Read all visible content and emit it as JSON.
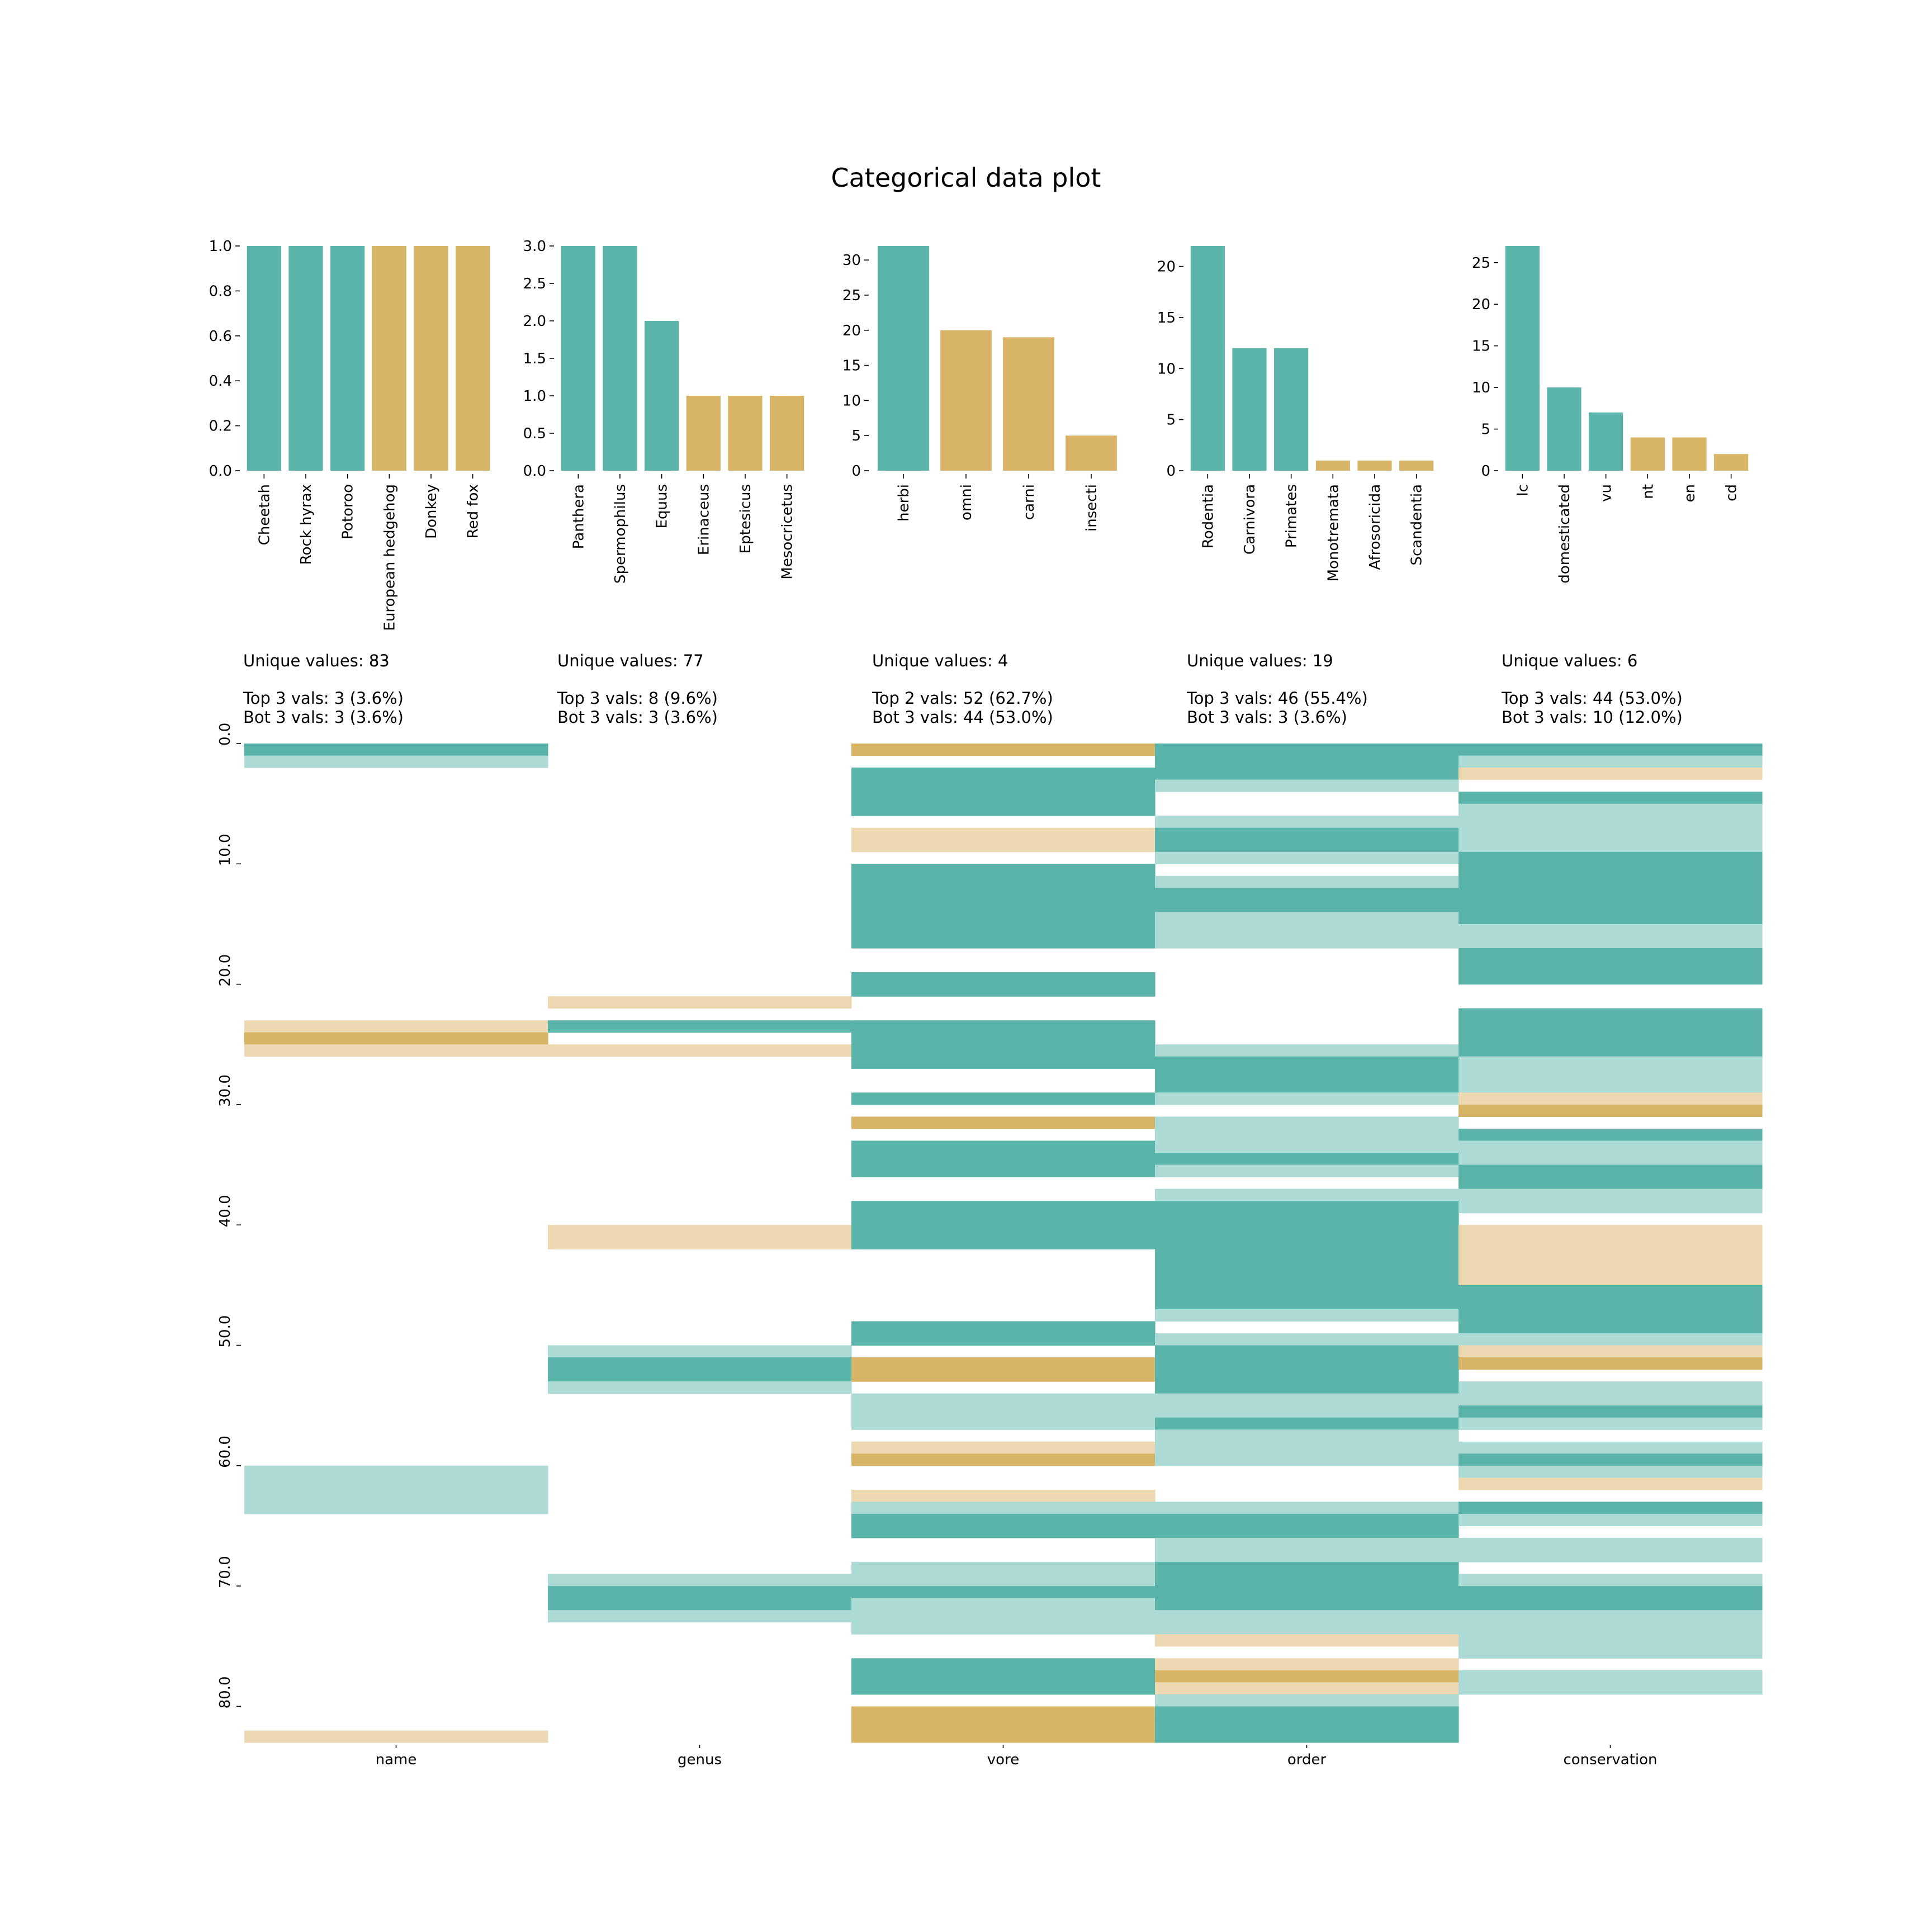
{
  "title": "Categorical data plot",
  "colors": {
    "top_strong": "#5bb4aa",
    "top_light": "#acdad5",
    "bot_strong": "#d7b466",
    "bot_light": "#ecd9b2"
  },
  "stat_lines": [
    {
      "unique": "Unique values: 83",
      "top": "Top 3 vals: 3 (3.6%)",
      "bot": "Bot 3 vals: 3 (3.6%)"
    },
    {
      "unique": "Unique values: 77",
      "top": "Top 3 vals: 8 (9.6%)",
      "bot": "Bot 3 vals: 3 (3.6%)"
    },
    {
      "unique": "Unique values: 4",
      "top": "Top 2 vals: 52 (62.7%)",
      "bot": "Bot 3 vals: 44 (53.0%)"
    },
    {
      "unique": "Unique values: 19",
      "top": "Top 3 vals: 46 (55.4%)",
      "bot": "Bot 3 vals: 3 (3.6%)"
    },
    {
      "unique": "Unique values: 6",
      "top": "Top 3 vals: 44 (53.0%)",
      "bot": "Bot 3 vals: 10 (12.0%)"
    }
  ],
  "chart_data": [
    {
      "type": "bar",
      "categories": [
        "Cheetah",
        "Rock hyrax",
        "Potoroo",
        "European hedgehog",
        "Donkey",
        "Red fox"
      ],
      "values": [
        1,
        1,
        1,
        1,
        1,
        1
      ],
      "group": [
        "top",
        "top",
        "top",
        "bot",
        "bot",
        "bot"
      ],
      "ylim": [
        0,
        1.0
      ],
      "yticks": [
        0.0,
        0.2,
        0.4,
        0.6,
        0.8,
        1.0
      ],
      "ytick_labels": [
        "0.0",
        "0.2",
        "0.4",
        "0.6",
        "0.8",
        "1.0"
      ]
    },
    {
      "type": "bar",
      "categories": [
        "Panthera",
        "Spermophilus",
        "Equus",
        "Erinaceus",
        "Eptesicus",
        "Mesocricetus"
      ],
      "values": [
        3,
        3,
        2,
        1,
        1,
        1
      ],
      "group": [
        "top",
        "top",
        "top",
        "bot",
        "bot",
        "bot"
      ],
      "ylim": [
        0,
        3.0
      ],
      "yticks": [
        0.0,
        0.5,
        1.0,
        1.5,
        2.0,
        2.5,
        3.0
      ],
      "ytick_labels": [
        "0.0",
        "0.5",
        "1.0",
        "1.5",
        "2.0",
        "2.5",
        "3.0"
      ]
    },
    {
      "type": "bar",
      "categories": [
        "herbi",
        "omni",
        "carni",
        "insecti"
      ],
      "values": [
        32,
        20,
        19,
        5
      ],
      "group": [
        "top",
        "bot",
        "bot",
        "bot"
      ],
      "ylim": [
        0,
        32
      ],
      "yticks": [
        0,
        5,
        10,
        15,
        20,
        25,
        30
      ],
      "ytick_labels": [
        "0",
        "5",
        "10",
        "15",
        "20",
        "25",
        "30"
      ]
    },
    {
      "type": "bar",
      "categories": [
        "Rodentia",
        "Carnivora",
        "Primates",
        "Monotremata",
        "Afrosoricida",
        "Scandentia"
      ],
      "values": [
        22,
        12,
        12,
        1,
        1,
        1
      ],
      "group": [
        "top",
        "top",
        "top",
        "bot",
        "bot",
        "bot"
      ],
      "ylim": [
        0,
        22
      ],
      "yticks": [
        0,
        5,
        10,
        15,
        20
      ],
      "ytick_labels": [
        "0",
        "5",
        "10",
        "15",
        "20"
      ]
    },
    {
      "type": "bar",
      "categories": [
        "lc",
        "domesticated",
        "vu",
        "nt",
        "en",
        "cd"
      ],
      "values": [
        27,
        10,
        7,
        4,
        4,
        2
      ],
      "group": [
        "top",
        "top",
        "top",
        "bot",
        "bot",
        "bot"
      ],
      "ylim": [
        0,
        27
      ],
      "yticks": [
        0,
        5,
        10,
        15,
        20,
        25
      ],
      "ytick_labels": [
        "0",
        "5",
        "10",
        "15",
        "20",
        "25"
      ]
    },
    {
      "type": "heatmap",
      "columns": [
        "name",
        "genus",
        "vore",
        "order",
        "conservation"
      ],
      "rows": 83,
      "ylim": [
        0,
        83
      ],
      "yticks": [
        0,
        10,
        20,
        30,
        40,
        50,
        60,
        70,
        80
      ],
      "ytick_labels": [
        "0.0",
        "10.0",
        "20.0",
        "30.0",
        "40.0",
        "50.0",
        "60.0",
        "70.0",
        "80.0"
      ],
      "legend": {
        "0": "not in top or bottom",
        "1": "top (light)",
        "2": "top (strong)",
        "-1": "bottom (light)",
        "-2": "bottom (strong)"
      },
      "cells": [
        "20000000000000000000000000000000000000000000000000000000000000000000000000000000000",
        "10000000000000000000000000000000000000000000000000000000000000000000000000000000000",
        "00000000000000000000000000000000000000000000000000000000000000000000000000000000000",
        "00000000000000000000000000000000000000000000000000000000000000000000000000000000000",
        "00000000000000000000000000000000000000000000000000000000000000000000000000000000000",
        "00000000000000000000000000000000000000000000000000000000000000000000000000000000000",
        "00000000000000000000000000000000000000000000000000000000000000000000000000000000000",
        "00000000000000000000000000000000000000000000000000000000000000000000000000000000000",
        "00000000000000000000000000000000000000000000000000000000000000000000000000000000000",
        "00000000000000000000000000000000000000000000000000000000000000000000000000000000000",
        "00000000000000000000000000000000000000000000000000000000000000000000000000000000000",
        "00000000000000000000000000000000000000000000000000000000000000000000000000000000000",
        "00000000000000000000000000000000000000000000000000000000000000000000000000000000000",
        "00000000000000000000000000000000000000000000000000000000000000000000000000000000000",
        "00000000000000000000000000000000000000000000000000000000000000000000000000000000000",
        "00000000000000000000000000000000000000000000000000000000000000000000000000000000000",
        "00000000000000000000000000000000000000000000000000000000000000000000000000000000000",
        "00000000000000000000000000000000000000000000000000000000000000000000000000000000000",
        "00000000000000000000000000000000000000000000000000000000000000000000000000000000000",
        "00000000000000000000000000000000000000000000000000000000000000000000000000000000000",
        "00000000000000000000000000000000000000000000000000000000000000000000000000000000000",
        "00000000000000000000000000000000000000000000000000000000000000000000000000000000000",
        "00000000000000000000000000000000000000000000000000000000000000000000000000000000000",
        "-1-1-1-1-1-1-1-1-1-1-1-1-1-1-1-1-1-1-1-1-1-1-1-1-1-1-1-1-1-1-1-1-1-1-1-1-1-1-1-1-1-1-1-1-1-1-1-1-1-1-1-1-1-1-1-1-1-1-1-1-1-1-1-1-1-1-1-1-1-1-1-1-1-1-1-1-1-1-1-1-1-1-1"
      ]
    }
  ]
}
